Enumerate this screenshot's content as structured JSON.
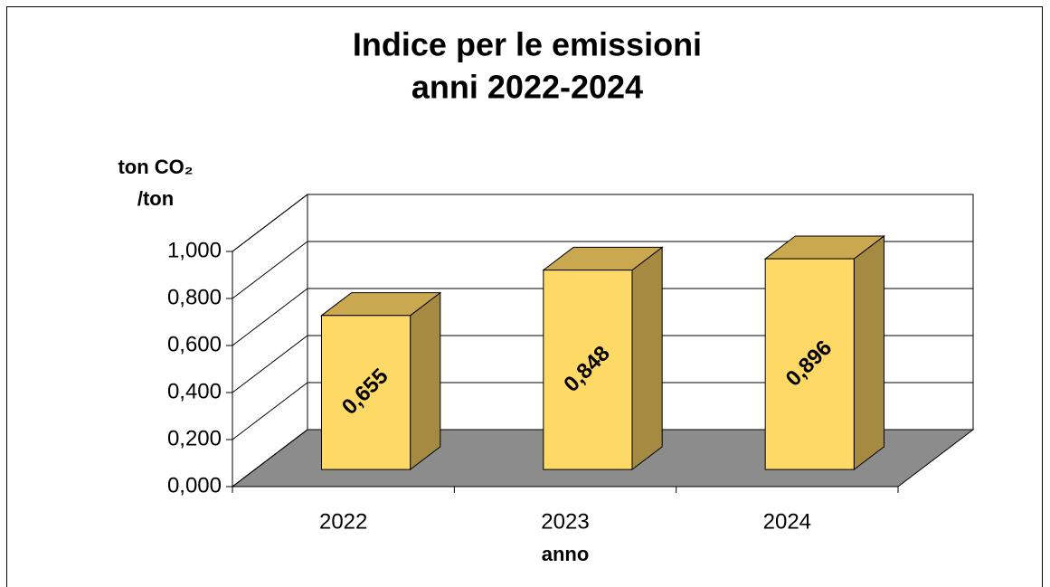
{
  "chart_data": {
    "type": "bar3d",
    "title": [
      "Indice per le emissioni",
      "anni 2022-2024"
    ],
    "y_label": [
      "ton CO₂",
      "/ton"
    ],
    "x_label": "anno",
    "categories": [
      "2022",
      "2023",
      "2024"
    ],
    "values": [
      0.655,
      0.848,
      0.896
    ],
    "value_labels": [
      "0,655",
      "0,848",
      "0,896"
    ],
    "color": "#FFD966",
    "ylim": [
      0,
      1
    ],
    "yticks": [
      {
        "value": 0,
        "label": "0,000"
      },
      {
        "value": 0.2,
        "label": "0,200"
      },
      {
        "value": 0.4,
        "label": "0,400"
      },
      {
        "value": 0.6,
        "label": "0,600"
      },
      {
        "value": 0.8,
        "label": "0,800"
      },
      {
        "value": 1,
        "label": "1,000"
      }
    ],
    "grid": true
  }
}
